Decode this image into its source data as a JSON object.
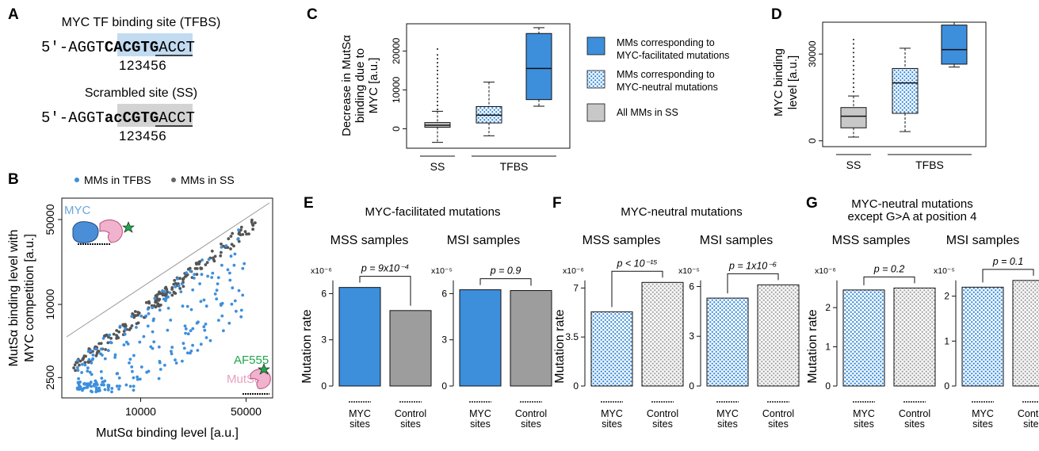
{
  "colors": {
    "blue": "#3d8fdc",
    "blue_light": "#c4def4",
    "gray": "#9d9d9d",
    "gray_light": "#d0d0d0",
    "seq_blue": "#c2dbf1",
    "seq_gray": "#d3d3d3",
    "green": "#1ea84a",
    "pink": "#e8a0bf",
    "bluegraph": "#6fa5dc"
  },
  "panel_letters": [
    "A",
    "B",
    "C",
    "D",
    "E",
    "F",
    "G"
  ],
  "A": {
    "title1": "MYC TF binding site (TFBS)",
    "seq1": {
      "prefix": "5′-AGGT",
      "core": "CACGTG",
      "suffix": "ACCT"
    },
    "title2": "Scrambled site (SS)",
    "seq2": {
      "prefix": "5′-AGGT",
      "core": "acCGTG",
      "suffix": "ACCT"
    },
    "positions": "123456"
  },
  "legend_C": [
    {
      "label1": "MMs corresponding to",
      "label2": "MYC-facilitated mutations"
    },
    {
      "label1": "MMs corresponding to",
      "label2": "MYC-neutral mutations"
    },
    {
      "label1": "All MMs in SS",
      "label2": ""
    }
  ],
  "chart_data": [
    {
      "id": "B",
      "type": "scatter",
      "legend": [
        "MMs in TFBS",
        "MMs in SS"
      ],
      "xlabel": "MutSα binding level [a.u.]",
      "ylabel": [
        "MutSα binding level with",
        "MYC competition [a.u.]"
      ],
      "xticks": [
        10000,
        50000
      ],
      "yticks": [
        2500,
        10000,
        50000
      ],
      "xlim": [
        3000,
        75000
      ],
      "ylim": [
        1700,
        75000
      ],
      "annotations": [
        "MYC",
        "AF555",
        "MutSα"
      ]
    },
    {
      "id": "C",
      "type": "box",
      "ylabel": [
        "Decrease in MutSα",
        "binding due to",
        "MYC [a.u.]"
      ],
      "ylim": [
        -5000,
        27000
      ],
      "yticks": [
        0,
        10000,
        20000
      ],
      "groups": [
        {
          "label": "SS",
          "members": [
            0
          ]
        },
        {
          "label": "TFBS",
          "members": [
            1,
            2
          ]
        }
      ],
      "boxes": [
        {
          "name": "All MMs in SS",
          "q1": 400,
          "median": 900,
          "q3": 1600,
          "lo": -3500,
          "hi": 4500,
          "outliers_hi": [
            5000,
            6000,
            7000,
            8000,
            9000,
            10000,
            11000,
            12000,
            13000,
            14000,
            15000,
            16000,
            17000,
            18000,
            19000,
            20500
          ],
          "style": "gray"
        },
        {
          "name": "MYC-neutral",
          "q1": 1500,
          "median": 3500,
          "q3": 5700,
          "lo": -1800,
          "hi": 12000,
          "outliers_hi": [],
          "style": "dots"
        },
        {
          "name": "MYC-facilitated",
          "q1": 7500,
          "median": 15500,
          "q3": 24500,
          "lo": 5800,
          "hi": 26000,
          "outliers_hi": [],
          "style": "blue"
        }
      ]
    },
    {
      "id": "D",
      "type": "box",
      "ylabel": [
        "MYC binding",
        "level [a.u.]"
      ],
      "ylim": [
        -2000,
        41000
      ],
      "yticks": [
        0,
        30000
      ],
      "groups": [
        {
          "label": "SS",
          "members": [
            0
          ]
        },
        {
          "label": "TFBS",
          "members": [
            1,
            2
          ]
        }
      ],
      "boxes": [
        {
          "name": "All MMs in SS",
          "q1": 4500,
          "median": 8500,
          "q3": 11500,
          "lo": 1300,
          "hi": 15500,
          "outliers_hi": [
            17000,
            18500,
            20000,
            21500,
            23000,
            24500,
            26000,
            27500,
            29000,
            30500,
            32000,
            33500,
            35000
          ],
          "style": "gray"
        },
        {
          "name": "MYC-neutral",
          "q1": 9500,
          "median": 20000,
          "q3": 25000,
          "lo": 3200,
          "hi": 32000,
          "outliers_hi": [],
          "style": "dots"
        },
        {
          "name": "MYC-facilitated",
          "q1": 26500,
          "median": 31500,
          "q3": 40000,
          "lo": 25500,
          "hi": 41000,
          "outliers_hi": [],
          "style": "blue"
        }
      ]
    },
    {
      "id": "E",
      "type": "bar",
      "title": "MYC-facilitated mutations",
      "ylabel": "Mutation rate",
      "panels": [
        {
          "subtitle": "MSS samples",
          "pval": "p = 9x10⁻⁴",
          "scale": "x10⁻⁶",
          "ylim": [
            0,
            7
          ],
          "yticks": [
            0,
            3,
            6
          ],
          "ytick_labels": [
            "0",
            "3",
            "6"
          ],
          "categories": [
            "MYC sites",
            "Control sites"
          ],
          "values": [
            6.4,
            4.9
          ],
          "styles": [
            "blue",
            "gray"
          ]
        },
        {
          "subtitle": "MSI samples",
          "pval": "p = 0.9",
          "scale": "x10⁻⁵",
          "ylim": [
            0,
            7
          ],
          "yticks": [
            0,
            3,
            6
          ],
          "ytick_labels": [
            "0",
            "3",
            "6"
          ],
          "categories": [
            "MYC sites",
            "Control sites"
          ],
          "values": [
            6.25,
            6.2
          ],
          "styles": [
            "blue",
            "gray"
          ]
        }
      ]
    },
    {
      "id": "F",
      "type": "bar",
      "title": "MYC-neutral mutations",
      "ylabel": "Mutation rate",
      "panels": [
        {
          "subtitle": "MSS samples",
          "pval": "p < 10⁻¹⁵",
          "scale": "x10⁻⁶",
          "ylim": [
            0,
            7.7
          ],
          "yticks": [
            0,
            3.5,
            7
          ],
          "ytick_labels": [
            "0",
            "3.5",
            "7"
          ],
          "categories": [
            "MYC sites",
            "Control sites"
          ],
          "values": [
            5.3,
            7.4
          ],
          "styles": [
            "dots",
            "dotsgray"
          ]
        },
        {
          "subtitle": "MSI samples",
          "pval": "p = 1x10⁻⁶",
          "scale": "x10⁻⁵",
          "ylim": [
            0,
            6.5
          ],
          "yticks": [
            0,
            3,
            6
          ],
          "ytick_labels": [
            "0",
            "3",
            "6"
          ],
          "categories": [
            "MYC sites",
            "Control sites"
          ],
          "values": [
            5.3,
            6.1
          ],
          "styles": [
            "dots",
            "dotsgray"
          ]
        }
      ]
    },
    {
      "id": "G",
      "type": "bar",
      "title": [
        "MYC-neutral mutations",
        "except G>A at position 4"
      ],
      "ylabel": "Mutation rate",
      "panels": [
        {
          "subtitle": "MSS samples",
          "pval": "p = 0.2",
          "scale": "x10⁻⁶",
          "ylim": [
            0,
            2.75
          ],
          "yticks": [
            0,
            1,
            2
          ],
          "ytick_labels": [
            "0",
            "1",
            "2"
          ],
          "categories": [
            "MYC sites",
            "Control sites"
          ],
          "values": [
            2.45,
            2.5
          ],
          "styles": [
            "dots",
            "dotsgray"
          ]
        },
        {
          "subtitle": "MSI samples",
          "pval": "p = 0.1",
          "scale": "x10⁻⁵",
          "ylim": [
            0,
            2.4
          ],
          "yticks": [
            0,
            1,
            2
          ],
          "ytick_labels": [
            "0",
            "1",
            "2"
          ],
          "categories": [
            "MYC sites",
            "Control sites"
          ],
          "values": [
            2.2,
            2.35
          ],
          "styles": [
            "dots",
            "dotsgray"
          ]
        }
      ]
    }
  ]
}
